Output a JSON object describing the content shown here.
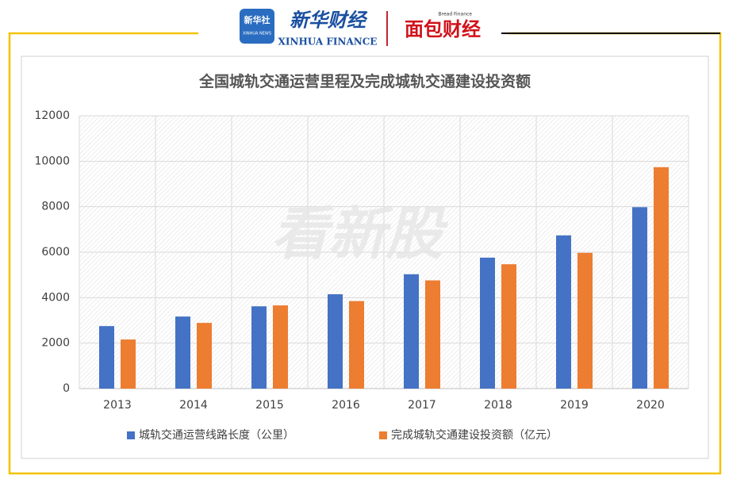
{
  "header": {
    "badge_cn": "新华社",
    "badge_en": "XINHUA NEWS",
    "brand_cn": "新华财经",
    "brand_en": "XINHUA FINANCE",
    "partner_cn": "面包财经",
    "partner_en": "Bread Finance"
  },
  "watermark": "看新股",
  "chart_data": {
    "type": "bar",
    "title": "全国城轨交通运营里程及完成城轨交通建设投资额",
    "categories": [
      "2013",
      "2014",
      "2015",
      "2016",
      "2017",
      "2018",
      "2019",
      "2020"
    ],
    "series": [
      {
        "name": "城轨交通运营线路长度（公里）",
        "color": "#4472c4",
        "values": [
          2750,
          3170,
          3620,
          4150,
          5030,
          5760,
          6740,
          7980
        ]
      },
      {
        "name": "完成城轨交通建设投资额（亿元）",
        "color": "#ed7d31",
        "values": [
          2160,
          2890,
          3660,
          3850,
          4760,
          5470,
          5970,
          9740
        ]
      }
    ],
    "ylim": [
      0,
      12000
    ],
    "yticks": [
      0,
      2000,
      4000,
      6000,
      8000,
      10000,
      12000
    ],
    "grid": true,
    "legend": "bottom"
  }
}
